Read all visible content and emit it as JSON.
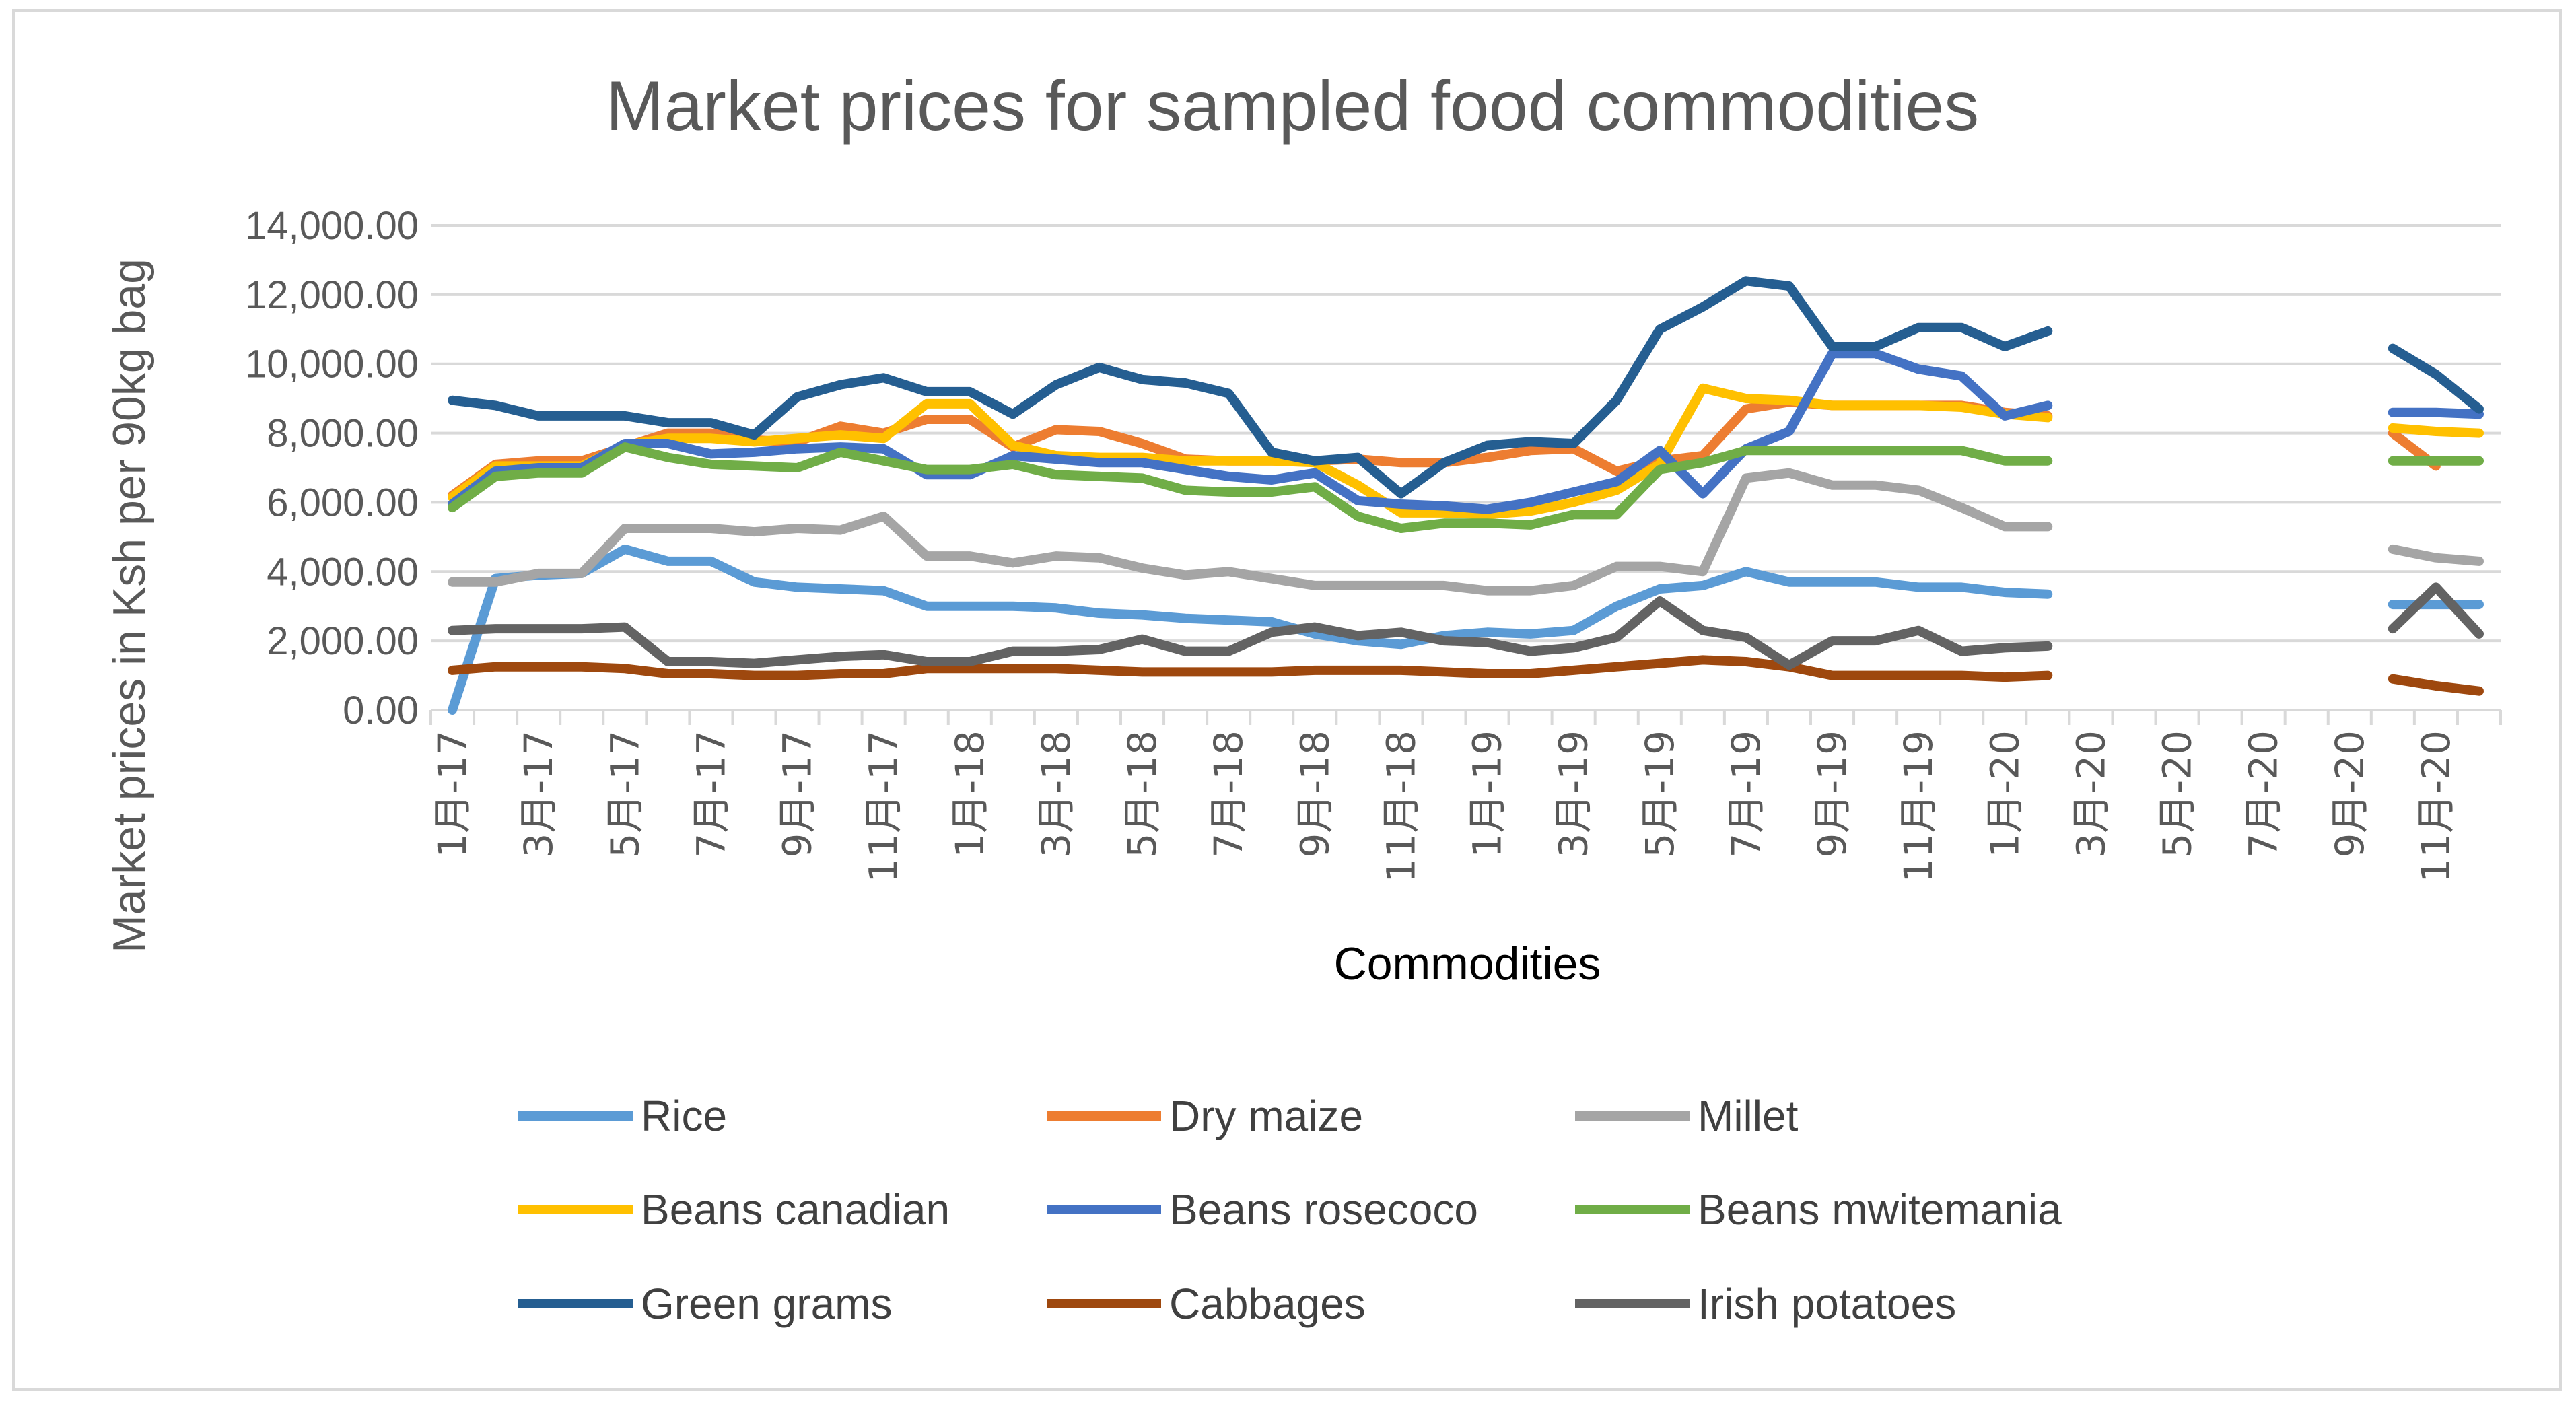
{
  "chart_data": {
    "type": "line",
    "title": "Market prices for sampled food commodities",
    "xlabel": "Commodities",
    "ylabel": "Market prices in Ksh per 90kg bag",
    "ylim": [
      0,
      14000
    ],
    "yticks": [
      "0.00",
      "2,000.00",
      "4,000.00",
      "6,000.00",
      "8,000.00",
      "10,000.00",
      "12,000.00",
      "14,000.00"
    ],
    "x": [
      "1月-17",
      "2月-17",
      "3月-17",
      "4月-17",
      "5月-17",
      "6月-17",
      "7月-17",
      "8月-17",
      "9月-17",
      "10月-17",
      "11月-17",
      "12月-17",
      "1月-18",
      "2月-18",
      "3月-18",
      "4月-18",
      "5月-18",
      "6月-18",
      "7月-18",
      "8月-18",
      "9月-18",
      "10月-18",
      "11月-18",
      "12月-18",
      "1月-19",
      "2月-19",
      "3月-19",
      "4月-19",
      "5月-19",
      "6月-19",
      "7月-19",
      "8月-19",
      "9月-19",
      "10月-19",
      "11月-19",
      "12月-19",
      "1月-20",
      "2月-20",
      "3月-20",
      "4月-20",
      "5月-20",
      "6月-20",
      "7月-20",
      "8月-20",
      "9月-20",
      "10月-20",
      "11月-20",
      "12月-20"
    ],
    "xtick_labels": [
      "1月-17",
      "3月-17",
      "5月-17",
      "7月-17",
      "9月-17",
      "11月-17",
      "1月-18",
      "3月-18",
      "5月-18",
      "7月-18",
      "9月-18",
      "11月-18",
      "1月-19",
      "3月-19",
      "5月-19",
      "7月-19",
      "9月-19",
      "11月-19",
      "1月-20",
      "3月-20",
      "5月-20",
      "7月-20",
      "9月-20",
      "11月-20"
    ],
    "grid": true,
    "legend_position": "bottom",
    "series": [
      {
        "name": "Rice",
        "color": "#5B9BD5",
        "values": [
          0,
          3800,
          3900,
          3950,
          4650,
          4300,
          4300,
          3700,
          3550,
          3500,
          3450,
          3000,
          3000,
          3000,
          2950,
          2800,
          2750,
          2650,
          2600,
          2550,
          2200,
          2000,
          1900,
          2150,
          2250,
          2200,
          2300,
          3000,
          3500,
          3600,
          4000,
          3700,
          3700,
          3700,
          3550,
          3550,
          3400,
          3350,
          null,
          null,
          null,
          null,
          null,
          null,
          null,
          3050,
          3050,
          3050
        ]
      },
      {
        "name": "Dry maize",
        "color": "#ED7D31",
        "values": [
          6200,
          7100,
          7200,
          7200,
          7600,
          8000,
          8000,
          7800,
          7750,
          8200,
          8000,
          8400,
          8400,
          7600,
          8100,
          8050,
          7700,
          7250,
          7200,
          7200,
          7200,
          7250,
          7150,
          7150,
          7300,
          7500,
          7550,
          6900,
          7200,
          7350,
          8700,
          8900,
          8800,
          8800,
          8800,
          8800,
          8600,
          8500,
          null,
          null,
          null,
          null,
          null,
          null,
          null,
          8000,
          7050,
          null
        ]
      },
      {
        "name": "Millet",
        "color": "#A5A5A5",
        "values": [
          3700,
          3700,
          3950,
          3950,
          5250,
          5250,
          5250,
          5150,
          5250,
          5200,
          5600,
          4450,
          4450,
          4250,
          4450,
          4400,
          4100,
          3900,
          4000,
          3800,
          3600,
          3600,
          3600,
          3600,
          3450,
          3450,
          3600,
          4150,
          4150,
          4000,
          6700,
          6850,
          6500,
          6500,
          6350,
          5850,
          5300,
          5300,
          null,
          null,
          null,
          null,
          null,
          null,
          null,
          4650,
          4400,
          4300
        ]
      },
      {
        "name": "Beans canadian",
        "color": "#FFC000",
        "values": [
          6150,
          7050,
          7050,
          7050,
          7650,
          7850,
          7850,
          7750,
          7850,
          7950,
          7850,
          8850,
          8850,
          7650,
          7350,
          7300,
          7300,
          7200,
          7200,
          7200,
          7150,
          6500,
          5700,
          5700,
          5650,
          5750,
          6000,
          6350,
          7100,
          9300,
          9000,
          8950,
          8800,
          8800,
          8800,
          8750,
          8550,
          8450,
          null,
          null,
          null,
          null,
          null,
          null,
          null,
          8150,
          8050,
          8000
        ]
      },
      {
        "name": "Beans rosecoco",
        "color": "#4472C4",
        "values": [
          5950,
          6900,
          7000,
          7000,
          7700,
          7700,
          7400,
          7450,
          7550,
          7600,
          7550,
          6800,
          6800,
          7350,
          7250,
          7150,
          7150,
          6950,
          6750,
          6650,
          6850,
          6050,
          5950,
          5900,
          5800,
          6000,
          6300,
          6600,
          7500,
          6250,
          7550,
          8050,
          10300,
          10300,
          9850,
          9650,
          8500,
          8800,
          null,
          null,
          null,
          null,
          null,
          null,
          null,
          8600,
          8600,
          8550
        ]
      },
      {
        "name": "Beans mwitemania",
        "color": "#70AD47",
        "values": [
          5850,
          6750,
          6850,
          6850,
          7600,
          7300,
          7100,
          7050,
          7000,
          7450,
          7200,
          6950,
          6950,
          7100,
          6800,
          6750,
          6700,
          6350,
          6300,
          6300,
          6450,
          5600,
          5250,
          5400,
          5400,
          5350,
          5650,
          5650,
          6950,
          7150,
          7500,
          7500,
          7500,
          7500,
          7500,
          7500,
          7200,
          7200,
          null,
          null,
          null,
          null,
          null,
          null,
          null,
          7200,
          7200,
          7200
        ]
      },
      {
        "name": "Green grams",
        "color": "#255E91",
        "values": [
          8950,
          8800,
          8500,
          8500,
          8500,
          8300,
          8300,
          7950,
          9050,
          9400,
          9600,
          9200,
          9200,
          8550,
          9400,
          9900,
          9550,
          9450,
          9150,
          7450,
          7200,
          7300,
          6250,
          7150,
          7650,
          7750,
          7700,
          8950,
          11000,
          11650,
          12400,
          12250,
          10500,
          10500,
          11050,
          11050,
          10500,
          10950,
          null,
          null,
          null,
          null,
          null,
          null,
          null,
          10450,
          9700,
          8700
        ]
      },
      {
        "name": "Cabbages",
        "color": "#9E480E",
        "values": [
          1150,
          1250,
          1250,
          1250,
          1200,
          1050,
          1050,
          1000,
          1000,
          1050,
          1050,
          1200,
          1200,
          1200,
          1200,
          1150,
          1100,
          1100,
          1100,
          1100,
          1150,
          1150,
          1150,
          1100,
          1050,
          1050,
          1150,
          1250,
          1350,
          1450,
          1400,
          1250,
          1000,
          1000,
          1000,
          1000,
          950,
          1000,
          null,
          null,
          null,
          null,
          null,
          null,
          null,
          900,
          700,
          550
        ]
      },
      {
        "name": "Irish potatoes",
        "color": "#636363",
        "values": [
          2300,
          2350,
          2350,
          2350,
          2400,
          1400,
          1400,
          1350,
          1450,
          1550,
          1600,
          1400,
          1400,
          1700,
          1700,
          1750,
          2050,
          1700,
          1700,
          2250,
          2400,
          2150,
          2250,
          2000,
          1950,
          1700,
          1800,
          2100,
          3150,
          2300,
          2100,
          1300,
          2000,
          2000,
          2300,
          1700,
          1800,
          1850,
          null,
          null,
          null,
          null,
          null,
          null,
          null,
          2350,
          3550,
          2200
        ]
      }
    ]
  }
}
